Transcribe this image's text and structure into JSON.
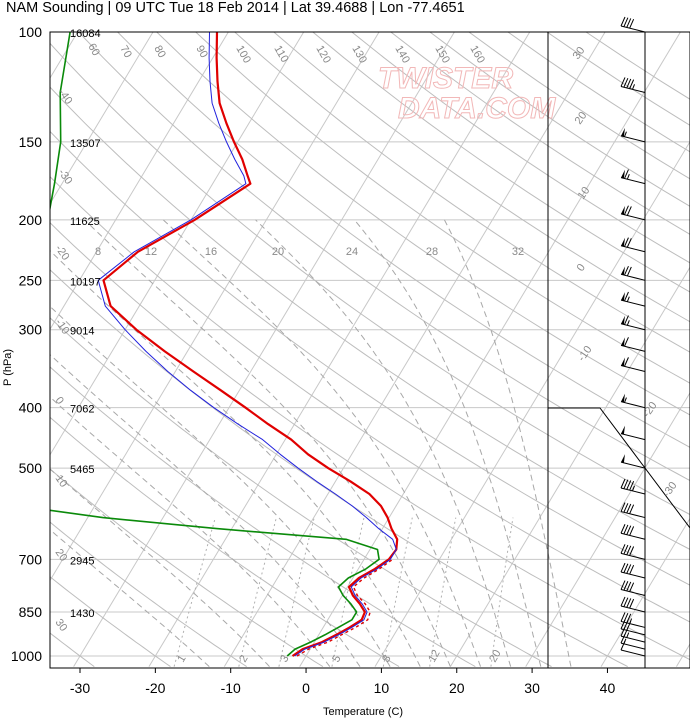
{
  "title": "NAM Sounding | 09 UTC Tue 18 Feb 2014 | Lat 39.4688 | Lon -77.4651",
  "watermark": [
    "TWISTER",
    "DATA.COM"
  ],
  "colors": {
    "temperature": "#e00000",
    "dewpoint": "#0a8a0a",
    "virtual_temperature": "#2222dd",
    "grid": "#c8c8c8",
    "guides": "#a0a0a0"
  },
  "chart_data": {
    "type": "skew-t",
    "xlabel": "Temperature (C)",
    "ylabel": "P (hPa)",
    "x_ticks": [
      "-30",
      "-20",
      "-10",
      "0",
      "10",
      "20",
      "30",
      "40"
    ],
    "x_tick_values": [
      -30,
      -20,
      -10,
      0,
      10,
      20,
      30,
      40
    ],
    "xlim": [
      -34,
      46
    ],
    "ylim": [
      1040,
      100
    ],
    "y_ticks": [
      "100",
      "150",
      "200",
      "250",
      "300",
      "400",
      "500",
      "700",
      "850",
      "1000"
    ],
    "y_tick_values": [
      100,
      150,
      200,
      250,
      300,
      400,
      500,
      700,
      850,
      1000
    ],
    "height_labels": [
      {
        "p": 100,
        "text": "16084"
      },
      {
        "p": 150,
        "text": "13507"
      },
      {
        "p": 200,
        "text": "11625"
      },
      {
        "p": 250,
        "text": "10197"
      },
      {
        "p": 300,
        "text": "9014"
      },
      {
        "p": 400,
        "text": "7062"
      },
      {
        "p": 500,
        "text": "5465"
      },
      {
        "p": 700,
        "text": "2945"
      },
      {
        "p": 850,
        "text": "1430"
      }
    ],
    "isotherm_labels": [
      "-40",
      "-30",
      "-20",
      "-10",
      "0",
      "10",
      "20",
      "30"
    ],
    "dry_adiabat_labels": [
      "60",
      "70",
      "80",
      "90",
      "100",
      "110",
      "120",
      "130",
      "140",
      "150",
      "160"
    ],
    "moist_adiabat_labels": [
      "8",
      "12",
      "16",
      "20",
      "24",
      "28",
      "32"
    ],
    "mixing_ratio_labels": [
      "1",
      "2",
      "3",
      "5",
      "8",
      "12",
      "20"
    ],
    "series": [
      {
        "key": "temperature",
        "p": [
          1000,
          975,
          950,
          925,
          900,
          875,
          850,
          825,
          800,
          775,
          750,
          725,
          700,
          675,
          650,
          625,
          600,
          575,
          550,
          525,
          500,
          475,
          450,
          425,
          400,
          375,
          350,
          325,
          300,
          275,
          250,
          225,
          200,
          175,
          170,
          160,
          150,
          140,
          130,
          120,
          110,
          100
        ],
        "t": [
          -1.8,
          -1.0,
          1.0,
          2.3,
          3.5,
          4.5,
          4.3,
          3.0,
          1.4,
          0.2,
          0.8,
          2.2,
          3.3,
          3.5,
          2.8,
          1.2,
          -0.2,
          -2.0,
          -4.5,
          -8.0,
          -12.0,
          -15.8,
          -19.2,
          -23.5,
          -27.8,
          -32.5,
          -37.6,
          -43.0,
          -48.5,
          -53.8,
          -56.8,
          -54.5,
          -49.5,
          -45.0,
          -46.0,
          -48.0,
          -50.5,
          -53.0,
          -55.5,
          -57.5,
          -59.5,
          -61.5
        ]
      },
      {
        "key": "virtual_temperature",
        "p": [
          1000,
          975,
          950,
          925,
          900,
          875,
          850,
          825,
          800,
          775,
          750,
          725,
          700,
          675,
          650,
          625,
          600,
          575,
          550,
          525,
          500,
          475,
          450,
          425,
          400,
          375,
          350,
          325,
          300,
          275,
          250,
          225,
          200,
          175,
          170,
          160,
          150,
          140,
          130,
          120,
          110,
          100
        ],
        "t": [
          -1.5,
          -0.7,
          1.3,
          2.6,
          3.8,
          4.8,
          4.6,
          3.3,
          1.7,
          0.5,
          1.1,
          2.5,
          3.5,
          3.5,
          2.2,
          -0.5,
          -3.0,
          -5.8,
          -9.0,
          -12.5,
          -16.0,
          -19.5,
          -23.0,
          -27.5,
          -32.0,
          -36.5,
          -41.0,
          -45.5,
          -50.0,
          -54.5,
          -57.5,
          -55.0,
          -50.0,
          -45.6,
          -46.5,
          -49.0,
          -51.5,
          -54.0,
          -56.5,
          -58.5,
          -60.5,
          -62.5
        ]
      },
      {
        "key": "dewpoint",
        "p": [
          1000,
          975,
          950,
          925,
          900,
          875,
          850,
          825,
          800,
          775,
          750,
          725,
          700,
          675,
          650,
          625,
          600,
          575,
          550,
          525,
          500,
          475,
          450,
          425,
          400,
          375,
          350,
          325,
          300,
          275,
          250,
          225,
          200,
          175,
          150,
          125,
          100
        ],
        "t": [
          -2.5,
          -2.0,
          -0.5,
          0.8,
          2.0,
          3.2,
          3.2,
          1.8,
          0.1,
          -1.2,
          -0.6,
          1.0,
          2.0,
          1.0,
          -4.0,
          -22.0,
          -38.0,
          -50.0,
          -60.0,
          -66.0,
          -68.0,
          -70.0,
          -71.0,
          -72.0,
          -72.5,
          -70.0,
          -66.0,
          -65.0,
          -66.0,
          -67.5,
          -69.5,
          -69.0,
          -69.0,
          -71.0,
          -73.5,
          -77.5,
          -81.0
        ]
      },
      {
        "key": "parcel",
        "p": [
          1000,
          975,
          950,
          925,
          900,
          875,
          850,
          825,
          800,
          775,
          750,
          725,
          700
        ],
        "t": [
          -1.2,
          -0.2,
          1.8,
          3.0,
          4.3,
          5.3,
          5.0,
          3.7,
          2.0,
          0.8,
          1.5,
          2.8,
          3.8
        ]
      }
    ],
    "wind_barbs": [
      {
        "p": 1000,
        "speed_kt": 10
      },
      {
        "p": 975,
        "speed_kt": 15
      },
      {
        "p": 950,
        "speed_kt": 25
      },
      {
        "p": 925,
        "speed_kt": 30
      },
      {
        "p": 900,
        "speed_kt": 35
      },
      {
        "p": 850,
        "speed_kt": 40
      },
      {
        "p": 800,
        "speed_kt": 40
      },
      {
        "p": 750,
        "speed_kt": 40
      },
      {
        "p": 700,
        "speed_kt": 40
      },
      {
        "p": 650,
        "speed_kt": 40
      },
      {
        "p": 600,
        "speed_kt": 40
      },
      {
        "p": 550,
        "speed_kt": 45
      },
      {
        "p": 500,
        "speed_kt": 50
      },
      {
        "p": 450,
        "speed_kt": 50
      },
      {
        "p": 400,
        "speed_kt": 55
      },
      {
        "p": 350,
        "speed_kt": 60
      },
      {
        "p": 325,
        "speed_kt": 60
      },
      {
        "p": 300,
        "speed_kt": 65
      },
      {
        "p": 275,
        "speed_kt": 65
      },
      {
        "p": 250,
        "speed_kt": 70
      },
      {
        "p": 225,
        "speed_kt": 70
      },
      {
        "p": 200,
        "speed_kt": 70
      },
      {
        "p": 175,
        "speed_kt": 65
      },
      {
        "p": 150,
        "speed_kt": 55
      },
      {
        "p": 125,
        "speed_kt": 45
      },
      {
        "p": 100,
        "speed_kt": 40
      }
    ],
    "hodograph_axis_labels": [
      "-30",
      "-20",
      "-10",
      "0",
      "10",
      "20",
      "30"
    ]
  }
}
